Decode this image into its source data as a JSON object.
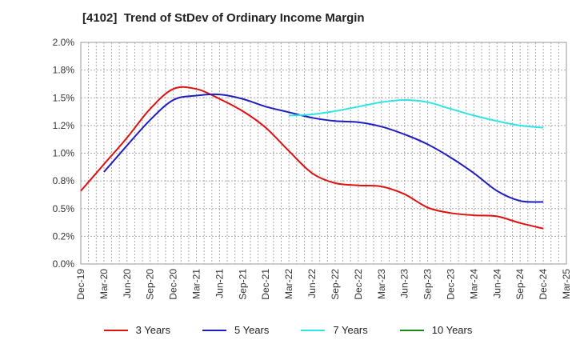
{
  "chart_data": {
    "type": "line",
    "title": "[4102]  Trend of StDev of Ordinary Income Margin",
    "x_categories": [
      "Dec-19",
      "Mar-20",
      "Jun-20",
      "Sep-20",
      "Dec-20",
      "Mar-21",
      "Jun-21",
      "Sep-21",
      "Dec-21",
      "Mar-22",
      "Jun-22",
      "Sep-22",
      "Dec-22",
      "Mar-23",
      "Jun-23",
      "Sep-23",
      "Dec-23",
      "Mar-24",
      "Jun-24",
      "Sep-24",
      "Dec-24",
      "Mar-25"
    ],
    "y_ticks": [
      "0.0%",
      "0.2%",
      "0.5%",
      "0.8%",
      "1.0%",
      "1.2%",
      "1.5%",
      "1.8%",
      "2.0%"
    ],
    "y_tick_values": [
      0,
      0.25,
      0.5,
      0.75,
      1.0,
      1.25,
      1.5,
      1.75,
      2.0
    ],
    "ylim": [
      0,
      2.0
    ],
    "y_unit": "%",
    "grid": true,
    "legend_position": "bottom",
    "series": [
      {
        "name": "3 Years",
        "color": "#e01010",
        "values": [
          0.66,
          0.9,
          1.14,
          1.4,
          1.58,
          1.58,
          1.49,
          1.38,
          1.23,
          1.02,
          0.82,
          0.73,
          0.71,
          0.7,
          0.63,
          0.51,
          0.46,
          0.44,
          0.43,
          0.37,
          0.32,
          null
        ]
      },
      {
        "name": "5 Years",
        "color": "#1e1ec0",
        "values": [
          null,
          0.83,
          1.07,
          1.3,
          1.48,
          1.52,
          1.53,
          1.49,
          1.42,
          1.37,
          1.32,
          1.29,
          1.28,
          1.24,
          1.17,
          1.08,
          0.96,
          0.82,
          0.66,
          0.57,
          0.56,
          null
        ]
      },
      {
        "name": "7 Years",
        "color": "#30e4e4",
        "values": [
          null,
          null,
          null,
          null,
          null,
          null,
          null,
          null,
          null,
          1.34,
          1.35,
          1.38,
          1.42,
          1.46,
          1.48,
          1.46,
          1.4,
          1.34,
          1.29,
          1.25,
          1.23,
          null
        ]
      },
      {
        "name": "10 Years",
        "color": "#1a8a1a",
        "values": [
          null,
          null,
          null,
          null,
          null,
          null,
          null,
          null,
          null,
          null,
          null,
          null,
          null,
          null,
          null,
          null,
          null,
          null,
          null,
          null,
          null,
          null
        ]
      }
    ]
  }
}
